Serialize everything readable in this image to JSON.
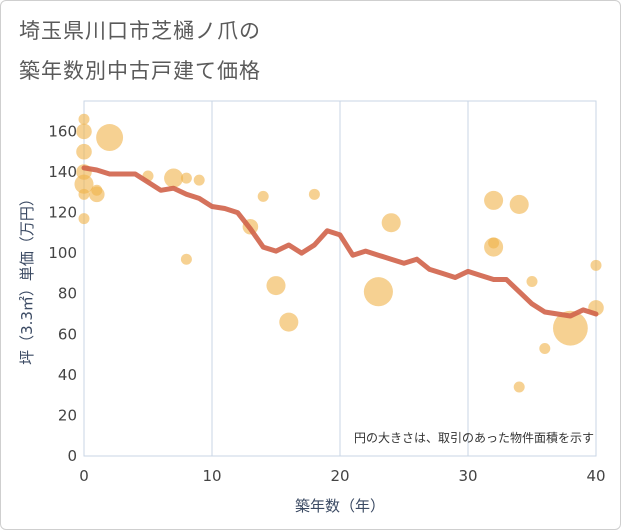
{
  "title_line1": "埼玉県川口市芝樋ノ爪の",
  "title_line2": "築年数別中古戸建て価格",
  "chart_data": {
    "type": "scatter",
    "title": "埼玉県川口市芝樋ノ爪の築年数別中古戸建て価格",
    "xlabel": "築年数（年）",
    "ylabel": "坪（3.3㎡）単価（万円）",
    "xlim": [
      0,
      40
    ],
    "ylim": [
      0,
      175
    ],
    "xticks": [
      0,
      10,
      20,
      30,
      40
    ],
    "yticks": [
      0,
      20,
      40,
      60,
      80,
      100,
      120,
      140,
      160
    ],
    "grid": true,
    "note": "円の大きさは、取引のあった物件面積を示す",
    "colors": {
      "bubble": "#f0b34a",
      "line": "#d0634a",
      "grid": "#c9d6e6"
    },
    "points": [
      {
        "x": 0,
        "y": 166,
        "s": 1
      },
      {
        "x": 0,
        "y": 160,
        "s": 2
      },
      {
        "x": 0,
        "y": 150,
        "s": 2
      },
      {
        "x": 0,
        "y": 140,
        "s": 2
      },
      {
        "x": 0,
        "y": 134,
        "s": 3
      },
      {
        "x": 0,
        "y": 129,
        "s": 1
      },
      {
        "x": 0,
        "y": 117,
        "s": 1
      },
      {
        "x": 1,
        "y": 131,
        "s": 1
      },
      {
        "x": 1,
        "y": 129,
        "s": 2
      },
      {
        "x": 2,
        "y": 157,
        "s": 6
      },
      {
        "x": 5,
        "y": 138,
        "s": 1
      },
      {
        "x": 7,
        "y": 137,
        "s": 3
      },
      {
        "x": 8,
        "y": 137,
        "s": 1
      },
      {
        "x": 8,
        "y": 97,
        "s": 1
      },
      {
        "x": 9,
        "y": 136,
        "s": 1
      },
      {
        "x": 13,
        "y": 113,
        "s": 2
      },
      {
        "x": 14,
        "y": 128,
        "s": 1
      },
      {
        "x": 15,
        "y": 84,
        "s": 3
      },
      {
        "x": 16,
        "y": 66,
        "s": 3
      },
      {
        "x": 18,
        "y": 129,
        "s": 1
      },
      {
        "x": 23,
        "y": 81,
        "s": 7
      },
      {
        "x": 24,
        "y": 115,
        "s": 3
      },
      {
        "x": 32,
        "y": 126,
        "s": 3
      },
      {
        "x": 32,
        "y": 105,
        "s": 1
      },
      {
        "x": 32,
        "y": 103,
        "s": 3
      },
      {
        "x": 34,
        "y": 124,
        "s": 3
      },
      {
        "x": 34,
        "y": 34,
        "s": 1
      },
      {
        "x": 35,
        "y": 86,
        "s": 1
      },
      {
        "x": 36,
        "y": 53,
        "s": 1
      },
      {
        "x": 38,
        "y": 63,
        "s": 10
      },
      {
        "x": 40,
        "y": 94,
        "s": 1
      },
      {
        "x": 40,
        "y": 73,
        "s": 2
      }
    ],
    "line": {
      "x": [
        0,
        1,
        2,
        3,
        4,
        5,
        6,
        7,
        8,
        9,
        10,
        11,
        12,
        13,
        14,
        15,
        16,
        17,
        18,
        19,
        20,
        21,
        22,
        23,
        24,
        25,
        26,
        27,
        28,
        29,
        30,
        31,
        32,
        33,
        34,
        35,
        36,
        37,
        38,
        39,
        40
      ],
      "y": [
        142,
        141,
        139,
        139,
        139,
        135,
        131,
        132,
        129,
        127,
        123,
        122,
        120,
        112,
        103,
        101,
        104,
        100,
        104,
        111,
        109,
        99,
        101,
        99,
        97,
        95,
        97,
        92,
        90,
        88,
        91,
        89,
        87,
        87,
        81,
        75,
        71,
        70,
        69,
        72,
        70
      ]
    }
  }
}
